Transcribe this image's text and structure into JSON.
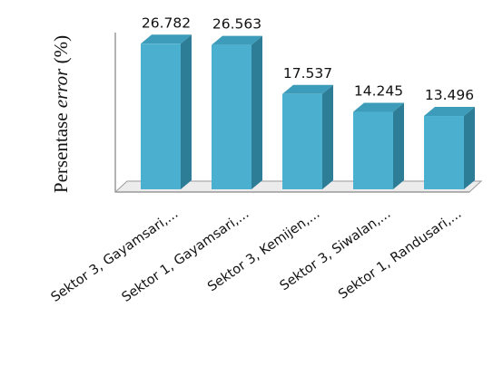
{
  "chart_data": {
    "type": "bar",
    "categories": [
      "Sektor 3, Gayamsari,...",
      "Sektor 1, Gayamsari,...",
      "Sektor 3, Kemijen,...",
      "Sektor 3, Siwalan,...",
      "Sektor 1, Randusari,..."
    ],
    "values": [
      26.782,
      26.563,
      17.537,
      14.245,
      13.496
    ],
    "data_labels": [
      "26.782",
      "26.563",
      "17.537",
      "14.245",
      "13.496"
    ],
    "ylabel_prefix": "Persentase ",
    "ylabel_italic": "error",
    "ylabel_suffix": " (%)",
    "ylim": [
      0,
      30
    ],
    "grid": false,
    "legend": "none",
    "style": "3d-column",
    "colors": {
      "bar_front": "#4bb0cf",
      "bar_side": "#2c7d95",
      "bar_top": "#3d9cb9",
      "floor": "#ececec",
      "axis": "#9a9a9a"
    }
  }
}
